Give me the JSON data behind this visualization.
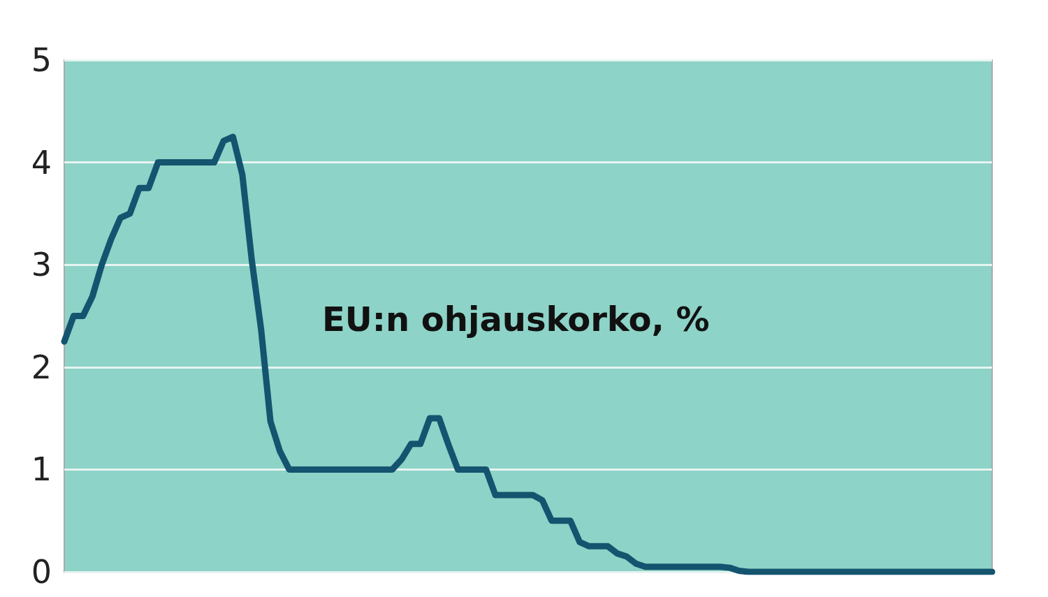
{
  "chart_data": {
    "type": "line",
    "title": "EU:n ohjauskorko, %",
    "categories": [
      null,
      null,
      null,
      null,
      null,
      null,
      null,
      null,
      null,
      null,
      null,
      null,
      null,
      null,
      null,
      null,
      null,
      null,
      null,
      null,
      null,
      null,
      null,
      null,
      null,
      null,
      null,
      null,
      null,
      null,
      null,
      null,
      null,
      null,
      null,
      null,
      null,
      null,
      null,
      null,
      null,
      null,
      null,
      null,
      null,
      null,
      null,
      null,
      null,
      null,
      null,
      null,
      null,
      null,
      null,
      null,
      null,
      null,
      null,
      null,
      null,
      null,
      null,
      null,
      null,
      null,
      null,
      null,
      null,
      null,
      null,
      null,
      null,
      null,
      null,
      null,
      null,
      null,
      null,
      null,
      null,
      null,
      null,
      null,
      null,
      null,
      null,
      null,
      null,
      null,
      null,
      null,
      null,
      null,
      null,
      null,
      null,
      null,
      null,
      null
    ],
    "series": [
      {
        "color": "#14546f",
        "values": [
          2.25,
          2.5,
          2.5,
          2.69,
          3.0,
          3.25,
          3.46,
          3.5,
          3.75,
          3.75,
          4.0,
          4.0,
          4.0,
          4.0,
          4.0,
          4.0,
          4.0,
          4.21,
          4.25,
          3.88,
          3.05,
          2.37,
          1.47,
          1.18,
          1.0,
          1.0,
          1.0,
          1.0,
          1.0,
          1.0,
          1.0,
          1.0,
          1.0,
          1.0,
          1.0,
          1.0,
          1.1,
          1.25,
          1.25,
          1.5,
          1.5,
          1.24,
          1.0,
          1.0,
          1.0,
          1.0,
          0.75,
          0.75,
          0.75,
          0.75,
          0.75,
          0.7,
          0.5,
          0.5,
          0.5,
          0.29,
          0.25,
          0.25,
          0.25,
          0.18,
          0.15,
          0.08,
          0.05,
          0.05,
          0.05,
          0.05,
          0.05,
          0.05,
          0.05,
          0.05,
          0.05,
          0.04,
          0.01,
          0,
          0,
          0,
          0,
          0,
          0,
          0,
          0,
          0,
          0,
          0,
          0,
          0,
          0,
          0,
          0,
          0,
          0,
          0,
          0,
          0,
          0,
          0,
          0,
          0,
          0,
          0
        ]
      }
    ],
    "ylim": [
      0,
      5
    ],
    "yticks": [
      0,
      1,
      2,
      3,
      4,
      5
    ],
    "grid": "y",
    "line_style": "solid",
    "tick_labels": "y"
  }
}
